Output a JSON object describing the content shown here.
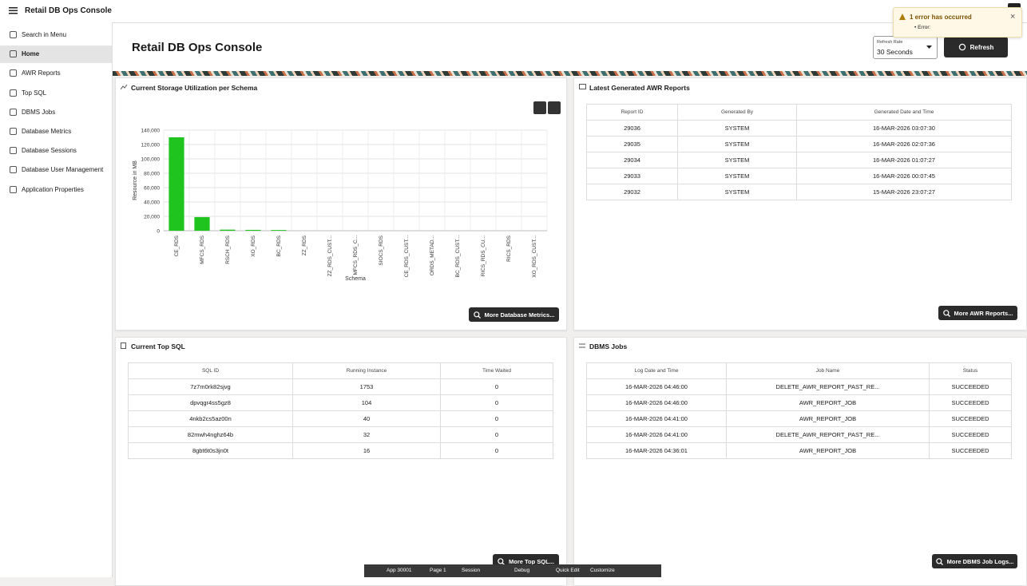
{
  "header": {
    "app_title": "Retail DB Ops Console"
  },
  "nav": {
    "items": [
      "Search in Menu",
      "Home",
      "AWR Reports",
      "Top SQL",
      "DBMS Jobs",
      "Database Metrics",
      "Database Sessions",
      "Database User Management",
      "Application Properties"
    ]
  },
  "page": {
    "title": "Retail DB Ops Console",
    "refresh_rate_label": "Refresh Rate",
    "refresh_rate_value": "30 Seconds",
    "refresh_button": "Refresh"
  },
  "notification": {
    "title": "1 error has occurred",
    "items": [
      "Error:"
    ]
  },
  "chart_data": {
    "type": "bar",
    "title": "Current Storage Utilization per Schema",
    "x_label": "Schema",
    "y_label": "Resource in MB",
    "categories": [
      "CE_RDS",
      "MFCS_RDS",
      "RSCH_RDS",
      "XO_RDS",
      "BC_RDS",
      "ZZ_RDS",
      "ZZ_RDS_CUST...",
      "MFCS_RDS_C...",
      "SIOCS_RDS",
      "CE_RDS_CUST...",
      "ORDS_METAD...",
      "BC_RDS_CUST...",
      "RICS_RDS_CU...",
      "RICS_RDS",
      "XO_RDS_CUST..."
    ],
    "values": [
      130000,
      19000,
      1500,
      1200,
      1000,
      0,
      0,
      0,
      0,
      0,
      0,
      0,
      0,
      0,
      0
    ],
    "color": "#1fc41f",
    "ylim": [
      0,
      140000
    ],
    "yticks": [
      0,
      {
        "value": 20000,
        "label": "20,000"
      },
      {
        "value": 40000,
        "label": "40,000"
      },
      {
        "value": 60000,
        "label": "60,000"
      },
      {
        "value": 80000,
        "label": "80,000"
      },
      {
        "value": 100000,
        "label": "100,000"
      },
      {
        "value": 120000,
        "label": "120,000"
      },
      {
        "value": 140000,
        "label": "140,000"
      }
    ],
    "grid": true
  },
  "chart_button": "More Database Metrics...",
  "awr": {
    "title": "Latest Generated AWR Reports",
    "columns": [
      "Report ID",
      "Generated By",
      "Generated Date and Time"
    ],
    "rows": [
      [
        "29036",
        "SYSTEM",
        "16-MAR-2026 03:07:30"
      ],
      [
        "29035",
        "SYSTEM",
        "16-MAR-2026 02:07:36"
      ],
      [
        "29034",
        "SYSTEM",
        "16-MAR-2026 01:07:27"
      ],
      [
        "29033",
        "SYSTEM",
        "16-MAR-2026 00:07:45"
      ],
      [
        "29032",
        "SYSTEM",
        "15-MAR-2026 23:07:27"
      ]
    ],
    "button": "More AWR Reports..."
  },
  "top_sql": {
    "title": "Current Top SQL",
    "columns": [
      "SQL ID",
      "Running Instance",
      "Time Waited"
    ],
    "rows": [
      [
        "7z7m0rk82sjvg",
        "1753",
        "0"
      ],
      [
        "dpvqgr4ss5gz8",
        "104",
        "0"
      ],
      [
        "4nkb2cs5az00n",
        "40",
        "0"
      ],
      [
        "82mwh4nghz64b",
        "32",
        "0"
      ],
      [
        "8gbt6t0s3jn0t",
        "16",
        "0"
      ]
    ],
    "button": "More Top SQL..."
  },
  "dbms_jobs": {
    "title": "DBMS Jobs",
    "columns": [
      "Log Date and Time",
      "Job Name",
      "Status"
    ],
    "rows": [
      [
        "16-MAR-2026 04:46:00",
        "DELETE_AWR_REPORT_PAST_RE...",
        "SUCCEEDED"
      ],
      [
        "16-MAR-2026 04:46:00",
        "AWR_REPORT_JOB",
        "SUCCEEDED"
      ],
      [
        "16-MAR-2026 04:41:00",
        "AWR_REPORT_JOB",
        "SUCCEEDED"
      ],
      [
        "16-MAR-2026 04:41:00",
        "DELETE_AWR_REPORT_PAST_RE...",
        "SUCCEEDED"
      ],
      [
        "16-MAR-2026 04:36:01",
        "AWR_REPORT_JOB",
        "SUCCEEDED"
      ]
    ],
    "button": "More DBMS Job Logs..."
  },
  "dev_toolbar": {
    "items": [
      "App 30001",
      "Page 1",
      "Session",
      "Debug",
      "Quick Edit",
      "Customize"
    ]
  }
}
